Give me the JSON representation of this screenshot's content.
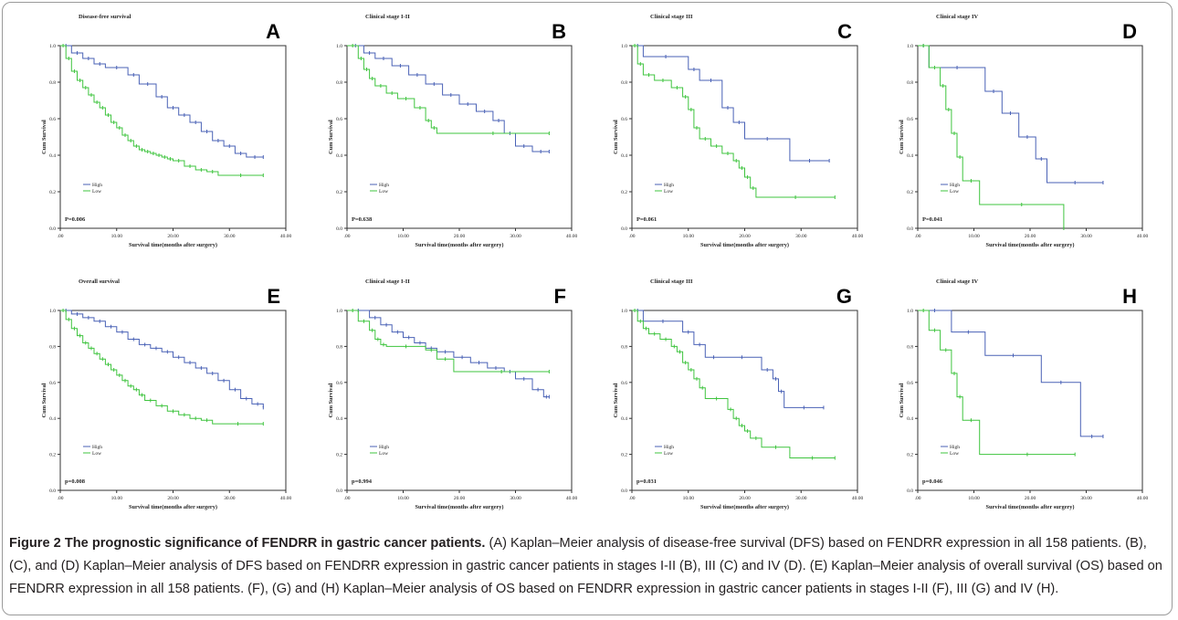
{
  "caption": {
    "heading": "Figure 2 The prognostic significance of FENDRR in gastric cancer patients.",
    "text": "(A) Kaplan–Meier analysis of disease-free survival (DFS) based on FENDRR expression in all 158 patients. (B), (C), and (D) Kaplan–Meier analysis of DFS based on FENDRR expression in gastric cancer patients in stages I-II (B), III (C) and IV (D). (E) Kaplan–Meier analysis of overall survival (OS) based on FENDRR expression in all 158 patients. (F), (G) and (H) Kaplan–Meier analysis of OS based on FENDRR expression in gastric cancer patients in stages I-II (F), III (G) and IV (H)."
  },
  "colors": {
    "high": "#4a62b6",
    "low": "#3fc43f",
    "axis": "#333333",
    "caption": "#231f20"
  },
  "chart_data": [
    {
      "type": "line",
      "letter": "A",
      "title": "Disease-free survival",
      "xlabel": "Survival time(months after surgery)",
      "ylabel": "Cum Survival",
      "pvalue": "P=0.006",
      "xlim": [
        0,
        40
      ],
      "ylim": [
        0,
        1
      ],
      "xticks": [
        ".00",
        "10.00",
        "20.00",
        "30.00",
        "40.00"
      ],
      "yticks": [
        "0.0",
        "0.2",
        "0.4",
        "0.6",
        "0.8",
        "1.0"
      ],
      "legend": [
        "High",
        "Low"
      ],
      "series": [
        {
          "name": "High",
          "x": [
            0,
            2,
            4,
            6,
            8,
            12,
            14,
            17,
            19,
            21,
            23,
            25,
            27,
            29,
            31,
            33,
            36
          ],
          "y": [
            1.0,
            0.96,
            0.93,
            0.9,
            0.88,
            0.84,
            0.79,
            0.72,
            0.66,
            0.62,
            0.58,
            0.53,
            0.48,
            0.45,
            0.41,
            0.39,
            0.39
          ]
        },
        {
          "name": "Low",
          "x": [
            0,
            1,
            2,
            3,
            4,
            5,
            6,
            7,
            8,
            9,
            10,
            11,
            12,
            13,
            14,
            15,
            16,
            17,
            18,
            19,
            20,
            22,
            24,
            26,
            28,
            36
          ],
          "y": [
            1.0,
            0.93,
            0.86,
            0.81,
            0.77,
            0.73,
            0.69,
            0.66,
            0.62,
            0.58,
            0.55,
            0.51,
            0.48,
            0.45,
            0.43,
            0.42,
            0.41,
            0.4,
            0.39,
            0.38,
            0.37,
            0.34,
            0.32,
            0.31,
            0.29,
            0.29
          ]
        }
      ]
    },
    {
      "type": "line",
      "letter": "B",
      "title": "Clinical stage I-II",
      "xlabel": "Survival time(months after surgery)",
      "ylabel": "Cum Survival",
      "pvalue": "P=0.638",
      "xlim": [
        0,
        40
      ],
      "ylim": [
        0,
        1
      ],
      "xticks": [
        ".00",
        "10.00",
        "20.00",
        "30.00",
        "40.00"
      ],
      "yticks": [
        "0.0",
        "0.2",
        "0.4",
        "0.6",
        "0.8",
        "1.0"
      ],
      "legend": [
        "High",
        "Low"
      ],
      "series": [
        {
          "name": "High",
          "x": [
            0,
            3,
            5,
            8,
            11,
            14,
            17,
            20,
            23,
            26,
            28,
            30,
            33,
            36
          ],
          "y": [
            1.0,
            0.96,
            0.93,
            0.89,
            0.84,
            0.79,
            0.73,
            0.68,
            0.64,
            0.59,
            0.52,
            0.45,
            0.42,
            0.42
          ]
        },
        {
          "name": "Low",
          "x": [
            0,
            2,
            3,
            4,
            5,
            7,
            9,
            12,
            14,
            15,
            16,
            36
          ],
          "y": [
            1.0,
            0.93,
            0.87,
            0.82,
            0.78,
            0.74,
            0.71,
            0.66,
            0.59,
            0.55,
            0.52,
            0.52
          ]
        }
      ]
    },
    {
      "type": "line",
      "letter": "C",
      "title": "Clinical stage III",
      "xlabel": "Survival time(months after surgery)",
      "ylabel": "Cum Survival",
      "pvalue": "P=0.061",
      "xlim": [
        0,
        40
      ],
      "ylim": [
        0,
        1
      ],
      "xticks": [
        ".00",
        "10.00",
        "20.00",
        "30.00",
        "40.00"
      ],
      "yticks": [
        "0.0",
        "0.2",
        "0.4",
        "0.6",
        "0.8",
        "1.0"
      ],
      "legend": [
        "High",
        "Low"
      ],
      "series": [
        {
          "name": "High",
          "x": [
            0,
            2,
            10,
            12,
            16,
            18,
            20,
            28,
            35
          ],
          "y": [
            1.0,
            0.94,
            0.87,
            0.81,
            0.66,
            0.58,
            0.49,
            0.37,
            0.37
          ]
        },
        {
          "name": "Low",
          "x": [
            0,
            1,
            2,
            4,
            7,
            9,
            10,
            11,
            12,
            14,
            16,
            18,
            19,
            20,
            21,
            22,
            36
          ],
          "y": [
            1.0,
            0.9,
            0.84,
            0.81,
            0.77,
            0.72,
            0.65,
            0.55,
            0.49,
            0.45,
            0.41,
            0.37,
            0.33,
            0.28,
            0.22,
            0.17,
            0.17
          ]
        }
      ]
    },
    {
      "type": "line",
      "letter": "D",
      "title": "Clinical stage IV",
      "xlabel": "Survival time(months after surgery)",
      "ylabel": "Cum Survival",
      "pvalue": "P=0.041",
      "xlim": [
        0,
        40
      ],
      "ylim": [
        0,
        1
      ],
      "xticks": [
        ".00",
        "10.00",
        "20.00",
        "30.00",
        "40.00"
      ],
      "yticks": [
        "0.0",
        "0.2",
        "0.4",
        "0.6",
        "0.8",
        "1.0"
      ],
      "legend": [
        "High",
        "Low"
      ],
      "series": [
        {
          "name": "High",
          "x": [
            0,
            2,
            12,
            15,
            18,
            21,
            23,
            33
          ],
          "y": [
            1.0,
            0.88,
            0.75,
            0.63,
            0.5,
            0.38,
            0.25,
            0.25
          ]
        },
        {
          "name": "Low",
          "x": [
            0,
            2,
            4,
            5,
            6,
            7,
            8,
            11,
            26
          ],
          "y": [
            1.0,
            0.88,
            0.78,
            0.65,
            0.52,
            0.39,
            0.26,
            0.13,
            0.0
          ]
        }
      ]
    },
    {
      "type": "line",
      "letter": "E",
      "title": "Overall survival",
      "xlabel": "Survival time(months after surgery)",
      "ylabel": "Cum Survival",
      "pvalue": "p=0.008",
      "xlim": [
        0,
        40
      ],
      "ylim": [
        0,
        1
      ],
      "xticks": [
        ".00",
        "10.00",
        "20.00",
        "30.00",
        "40.00"
      ],
      "yticks": [
        "0.0",
        "0.2",
        "0.4",
        "0.6",
        "0.8",
        "1.0"
      ],
      "legend": [
        "High",
        "Low"
      ],
      "series": [
        {
          "name": "High",
          "x": [
            0,
            2,
            4,
            6,
            8,
            10,
            12,
            14,
            16,
            18,
            20,
            22,
            24,
            26,
            28,
            30,
            32,
            34,
            36
          ],
          "y": [
            1.0,
            0.98,
            0.96,
            0.94,
            0.91,
            0.88,
            0.84,
            0.81,
            0.79,
            0.77,
            0.74,
            0.71,
            0.68,
            0.65,
            0.61,
            0.56,
            0.51,
            0.48,
            0.46
          ]
        },
        {
          "name": "Low",
          "x": [
            0,
            1,
            2,
            3,
            4,
            5,
            6,
            7,
            8,
            9,
            10,
            11,
            12,
            13,
            14,
            15,
            17,
            19,
            21,
            23,
            25,
            27,
            36
          ],
          "y": [
            1.0,
            0.95,
            0.9,
            0.86,
            0.82,
            0.79,
            0.76,
            0.73,
            0.7,
            0.67,
            0.64,
            0.61,
            0.58,
            0.56,
            0.53,
            0.5,
            0.47,
            0.44,
            0.42,
            0.4,
            0.39,
            0.37,
            0.37
          ]
        }
      ]
    },
    {
      "type": "line",
      "letter": "F",
      "title": "Clinical stage I-II",
      "xlabel": "Survival time(months after surgery)",
      "ylabel": "Cum Survival",
      "pvalue": "p=0.994",
      "xlim": [
        0,
        40
      ],
      "ylim": [
        0,
        1
      ],
      "xticks": [
        ".00",
        "10.00",
        "20.00",
        "30.00",
        "40.00"
      ],
      "yticks": [
        "0.0",
        "0.2",
        "0.4",
        "0.6",
        "0.8",
        "1.0"
      ],
      "legend": [
        "High",
        "Low"
      ],
      "series": [
        {
          "name": "High",
          "x": [
            0,
            4,
            6,
            8,
            10,
            12,
            14,
            16,
            19,
            22,
            25,
            28,
            30,
            33,
            35,
            36
          ],
          "y": [
            1.0,
            0.96,
            0.92,
            0.88,
            0.85,
            0.82,
            0.79,
            0.77,
            0.74,
            0.71,
            0.68,
            0.66,
            0.62,
            0.56,
            0.52,
            0.52
          ]
        },
        {
          "name": "Low",
          "x": [
            0,
            2,
            4,
            5,
            6,
            7,
            14,
            16,
            19,
            36
          ],
          "y": [
            1.0,
            0.94,
            0.89,
            0.84,
            0.81,
            0.8,
            0.78,
            0.73,
            0.66,
            0.66
          ]
        }
      ]
    },
    {
      "type": "line",
      "letter": "G",
      "title": "Clinical stage III",
      "xlabel": "Survival time(months after surgery)",
      "ylabel": "Cum Survival",
      "pvalue": "p=0.031",
      "xlim": [
        0,
        40
      ],
      "ylim": [
        0,
        1
      ],
      "xticks": [
        ".00",
        "10.00",
        "20.00",
        "30.00",
        "40.00"
      ],
      "yticks": [
        "0.0",
        "0.2",
        "0.4",
        "0.6",
        "0.8",
        "1.0"
      ],
      "legend": [
        "High",
        "Low"
      ],
      "series": [
        {
          "name": "High",
          "x": [
            0,
            2,
            9,
            11,
            13,
            16,
            23,
            25,
            26,
            27,
            34
          ],
          "y": [
            1.0,
            0.94,
            0.88,
            0.81,
            0.74,
            0.74,
            0.67,
            0.62,
            0.55,
            0.46,
            0.46
          ]
        },
        {
          "name": "Low",
          "x": [
            0,
            1,
            2,
            3,
            5,
            7,
            8,
            9,
            10,
            11,
            12,
            13,
            17,
            18,
            19,
            20,
            21,
            23,
            28,
            36
          ],
          "y": [
            1.0,
            0.94,
            0.9,
            0.87,
            0.84,
            0.8,
            0.77,
            0.71,
            0.67,
            0.62,
            0.57,
            0.51,
            0.45,
            0.4,
            0.36,
            0.33,
            0.29,
            0.24,
            0.18,
            0.18
          ]
        }
      ]
    },
    {
      "type": "line",
      "letter": "H",
      "title": "Clinical stage IV",
      "xlabel": "Survival time(months after surgery)",
      "ylabel": "Cum Survival",
      "pvalue": "p=0.046",
      "xlim": [
        0,
        40
      ],
      "ylim": [
        0,
        1
      ],
      "xticks": [
        ".00",
        "10.00",
        "20.00",
        "30.00",
        "40.00"
      ],
      "yticks": [
        "0.0",
        "0.2",
        "0.4",
        "0.6",
        "0.8",
        "1.0"
      ],
      "legend": [
        "High",
        "Low"
      ],
      "series": [
        {
          "name": "High",
          "x": [
            0,
            6,
            12,
            22,
            29,
            33
          ],
          "y": [
            1.0,
            0.88,
            0.75,
            0.6,
            0.3,
            0.3
          ]
        },
        {
          "name": "Low",
          "x": [
            0,
            2,
            4,
            6,
            7,
            8,
            11,
            28
          ],
          "y": [
            1.0,
            0.89,
            0.78,
            0.65,
            0.52,
            0.39,
            0.2,
            0.2
          ]
        }
      ]
    }
  ]
}
